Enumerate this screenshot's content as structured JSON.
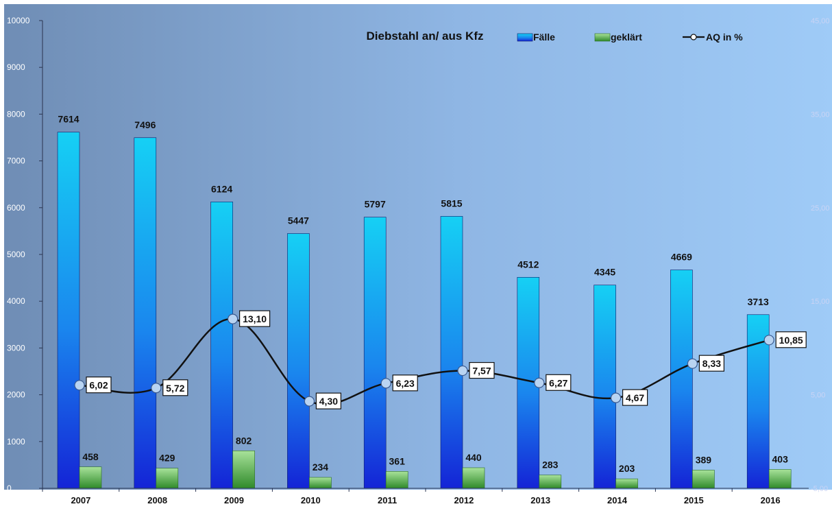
{
  "chart_data": {
    "type": "bar",
    "title": "Diebstahl an/ aus Kfz",
    "categories": [
      "2007",
      "2008",
      "2009",
      "2010",
      "2011",
      "2012",
      "2013",
      "2014",
      "2015",
      "2016"
    ],
    "series": [
      {
        "name": "Fälle",
        "type": "bar",
        "values": [
          7614,
          7496,
          6124,
          5447,
          5797,
          5815,
          4512,
          4345,
          4669,
          3713
        ],
        "color": "#1e6ff0"
      },
      {
        "name": "geklärt",
        "type": "bar",
        "values": [
          458,
          429,
          802,
          234,
          361,
          440,
          283,
          203,
          389,
          403
        ],
        "color": "#58a94e"
      },
      {
        "name": "AQ in %",
        "type": "line",
        "axis": "secondary",
        "values": [
          6.02,
          5.72,
          13.1,
          4.3,
          6.23,
          7.57,
          6.27,
          4.67,
          8.33,
          10.85
        ],
        "labels": [
          "6,02",
          "5,72",
          "13,10",
          "4,30",
          "6,23",
          "7,57",
          "6,27",
          "4,67",
          "8,33",
          "10,85"
        ],
        "color": "#111111"
      }
    ],
    "ylim": [
      0,
      10000
    ],
    "yticks": [
      0,
      1000,
      2000,
      3000,
      4000,
      5000,
      6000,
      7000,
      8000,
      9000,
      10000
    ],
    "y2lim": [
      -5,
      45
    ],
    "y2ticks": [
      "-5,00",
      "5,00",
      "15,00",
      "25,00",
      "35,00",
      "45,00"
    ],
    "grid": false,
    "legend_position": "top-right"
  }
}
